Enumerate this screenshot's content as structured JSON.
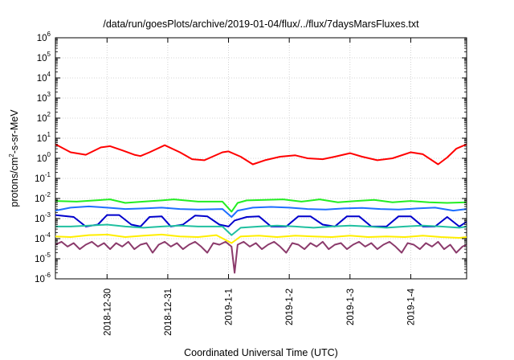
{
  "chart_data": {
    "type": "line",
    "title": "/data/run/goesPlots/archive/2019-01-04/flux/../flux/7daysMarsFluxes.txt",
    "xlabel": "Coordinated Universal Time (UTC)",
    "ylabel_main": "protons/cm",
    "ylabel_sup": "2",
    "ylabel_rest": "-s-sr-MeV",
    "yscale": "log",
    "ylim_exp": [
      -6,
      6
    ],
    "ytick_base": "10",
    "ytick_exponents": [
      -6,
      -5,
      -4,
      -3,
      -2,
      -1,
      0,
      1,
      2,
      3,
      4,
      5,
      6
    ],
    "xlim_days": [
      -2.85,
      3.92
    ],
    "xtick_labels": [
      "2018-12-30",
      "2018-12-31",
      "2019-1-1",
      "2019-1-2",
      "2019-1-3",
      "2019-1-4"
    ],
    "xtick_days": [
      -2,
      -1,
      0,
      1,
      2,
      3
    ],
    "grid": true,
    "legend": "none",
    "series": [
      {
        "color": "#ff0000",
        "x": [
          -2.85,
          -2.6,
          -2.35,
          -2.1,
          -1.95,
          -1.75,
          -1.55,
          -1.45,
          -1.3,
          -1.05,
          -0.8,
          -0.6,
          -0.4,
          -0.1,
          0.0,
          0.2,
          0.4,
          0.6,
          0.85,
          1.1,
          1.3,
          1.55,
          1.75,
          2.0,
          2.2,
          2.45,
          2.7,
          3.0,
          3.2,
          3.45,
          3.6,
          3.75,
          3.92
        ],
        "y": [
          5.0,
          2.0,
          1.5,
          3.5,
          4.0,
          2.5,
          1.5,
          1.3,
          2.0,
          4.5,
          2.0,
          0.9,
          0.8,
          2.0,
          2.2,
          1.2,
          0.5,
          0.8,
          1.2,
          1.4,
          1.0,
          0.9,
          1.2,
          1.8,
          1.2,
          0.8,
          1.0,
          2.0,
          1.6,
          0.5,
          1.1,
          3.0,
          5.0
        ]
      },
      {
        "color": "#22ee22",
        "x": [
          -2.85,
          -2.5,
          -2.2,
          -1.95,
          -1.7,
          -1.4,
          -1.1,
          -0.9,
          -0.5,
          -0.1,
          0.05,
          0.15,
          0.3,
          0.6,
          0.9,
          1.2,
          1.5,
          1.8,
          2.1,
          2.4,
          2.7,
          3.0,
          3.3,
          3.6,
          3.92
        ],
        "y": [
          0.0075,
          0.007,
          0.008,
          0.009,
          0.006,
          0.007,
          0.008,
          0.009,
          0.007,
          0.007,
          0.0022,
          0.006,
          0.008,
          0.0085,
          0.009,
          0.007,
          0.009,
          0.0065,
          0.0075,
          0.0085,
          0.0065,
          0.0075,
          0.0065,
          0.006,
          0.0065
        ]
      },
      {
        "color": "#1e6fff",
        "x": [
          -2.85,
          -2.6,
          -2.3,
          -2.0,
          -1.7,
          -1.4,
          -1.1,
          -0.8,
          -0.5,
          -0.1,
          0.05,
          0.15,
          0.4,
          0.7,
          1.0,
          1.3,
          1.6,
          1.9,
          2.2,
          2.5,
          2.8,
          3.1,
          3.4,
          3.7,
          3.92
        ],
        "y": [
          0.0025,
          0.0035,
          0.004,
          0.0035,
          0.003,
          0.0032,
          0.0035,
          0.003,
          0.0028,
          0.003,
          0.0012,
          0.0025,
          0.0035,
          0.0038,
          0.0035,
          0.003,
          0.0028,
          0.0032,
          0.0034,
          0.003,
          0.0028,
          0.0032,
          0.0035,
          0.0025,
          0.003
        ]
      },
      {
        "color": "#0000cc",
        "x": [
          -2.85,
          -2.55,
          -2.35,
          -2.15,
          -2.0,
          -1.8,
          -1.6,
          -1.45,
          -1.3,
          -1.1,
          -0.95,
          -0.75,
          -0.55,
          -0.35,
          -0.15,
          0.0,
          0.1,
          0.3,
          0.5,
          0.7,
          0.95,
          1.15,
          1.35,
          1.55,
          1.75,
          1.95,
          2.15,
          2.35,
          2.6,
          2.8,
          3.0,
          3.2,
          3.4,
          3.6,
          3.8,
          3.92
        ],
        "y": [
          0.0015,
          0.0012,
          0.0004,
          0.0005,
          0.0015,
          0.0015,
          0.0005,
          0.0004,
          0.0012,
          0.0013,
          0.0004,
          0.0005,
          0.0014,
          0.0013,
          0.0005,
          0.0004,
          0.0008,
          0.0012,
          0.0013,
          0.0004,
          0.0004,
          0.0013,
          0.0013,
          0.0005,
          0.0004,
          0.0013,
          0.0013,
          0.0004,
          0.0004,
          0.0013,
          0.0013,
          0.0004,
          0.0004,
          0.0012,
          0.0004,
          0.0007
        ]
      },
      {
        "color": "#20c0a0",
        "x": [
          -2.85,
          -2.6,
          -2.3,
          -2.0,
          -1.7,
          -1.4,
          -1.1,
          -0.8,
          -0.5,
          -0.1,
          0.05,
          0.2,
          0.5,
          0.8,
          1.1,
          1.4,
          1.7,
          2.0,
          2.3,
          2.6,
          2.9,
          3.2,
          3.5,
          3.8,
          3.92
        ],
        "y": [
          0.0004,
          0.0004,
          0.00045,
          0.0005,
          0.0004,
          0.00035,
          0.0004,
          0.00045,
          0.0004,
          0.0004,
          0.00015,
          0.00035,
          0.0004,
          0.00045,
          0.0004,
          0.00035,
          0.0004,
          0.00045,
          0.0004,
          0.00035,
          0.0004,
          0.00045,
          0.0004,
          0.00035,
          0.0004
        ]
      },
      {
        "color": "#ffee00",
        "x": [
          -2.85,
          -2.6,
          -2.3,
          -2.0,
          -1.7,
          -1.4,
          -1.1,
          -0.8,
          -0.5,
          -0.2,
          0.05,
          0.2,
          0.5,
          0.8,
          1.1,
          1.4,
          1.7,
          2.0,
          2.3,
          2.6,
          2.9,
          3.2,
          3.5,
          3.8,
          3.92
        ],
        "y": [
          0.00013,
          0.00012,
          0.00015,
          0.00016,
          0.00012,
          0.00014,
          0.00016,
          0.00013,
          0.00012,
          0.00015,
          6e-05,
          0.00013,
          0.00014,
          0.00012,
          0.00014,
          0.00013,
          0.00012,
          0.00014,
          0.00012,
          0.00013,
          0.00012,
          0.00014,
          0.00012,
          0.00011,
          0.00012
        ]
      },
      {
        "color": "#8b3a6b",
        "x": [
          -2.85,
          -2.75,
          -2.65,
          -2.55,
          -2.45,
          -2.35,
          -2.25,
          -2.15,
          -2.05,
          -1.95,
          -1.85,
          -1.75,
          -1.65,
          -1.55,
          -1.45,
          -1.35,
          -1.25,
          -1.15,
          -1.05,
          -0.95,
          -0.85,
          -0.75,
          -0.65,
          -0.55,
          -0.45,
          -0.35,
          -0.25,
          -0.15,
          -0.05,
          0.05,
          0.1,
          0.15,
          0.25,
          0.35,
          0.45,
          0.55,
          0.65,
          0.75,
          0.85,
          0.95,
          1.05,
          1.15,
          1.25,
          1.35,
          1.45,
          1.55,
          1.65,
          1.75,
          1.85,
          1.95,
          2.05,
          2.15,
          2.25,
          2.35,
          2.45,
          2.55,
          2.65,
          2.75,
          2.85,
          2.95,
          3.05,
          3.15,
          3.25,
          3.35,
          3.45,
          3.55,
          3.65,
          3.75,
          3.85,
          3.92
        ],
        "y": [
          5e-05,
          7e-05,
          4e-05,
          6e-05,
          3e-05,
          5e-05,
          7e-05,
          4e-05,
          6e-05,
          3e-05,
          6e-05,
          4e-05,
          7e-05,
          3e-05,
          5e-05,
          6e-05,
          2e-05,
          5e-05,
          7e-05,
          4e-05,
          6e-05,
          3e-05,
          5e-05,
          7e-05,
          4e-05,
          2e-05,
          6e-05,
          5e-05,
          7e-05,
          4e-05,
          2e-06,
          5e-05,
          7e-05,
          4e-05,
          6e-05,
          3e-05,
          5e-05,
          7e-05,
          4e-05,
          2e-05,
          6e-05,
          5e-05,
          3e-05,
          6e-05,
          4e-05,
          7e-05,
          3e-05,
          5e-05,
          6e-05,
          3e-05,
          5e-05,
          7e-05,
          4e-05,
          6e-05,
          3e-05,
          5e-05,
          7e-05,
          4e-05,
          2e-05,
          6e-05,
          5e-05,
          3e-05,
          6e-05,
          4e-05,
          7e-05,
          3e-05,
          5e-05,
          2e-05,
          4e-05,
          5e-05
        ]
      }
    ]
  }
}
